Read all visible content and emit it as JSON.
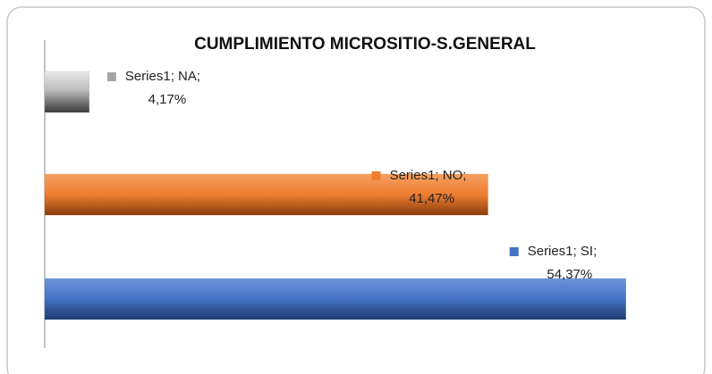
{
  "chart_data": {
    "type": "barh",
    "title": "CUMPLIMIENTO MICROSITIO-S.GENERAL",
    "categories": [
      "NA",
      "NO",
      "SI"
    ],
    "series": [
      {
        "name": "Series1",
        "values": [
          4.17,
          41.47,
          54.37
        ],
        "value_labels": [
          "Series1; NA; 4,17%",
          "Series1; NO; 41,47%",
          "Series1; SI; 54,37%"
        ],
        "colors": [
          "#a6a6a6",
          "#ed7d31",
          "#4472c4"
        ]
      }
    ],
    "xlim": [
      0,
      60
    ]
  }
}
